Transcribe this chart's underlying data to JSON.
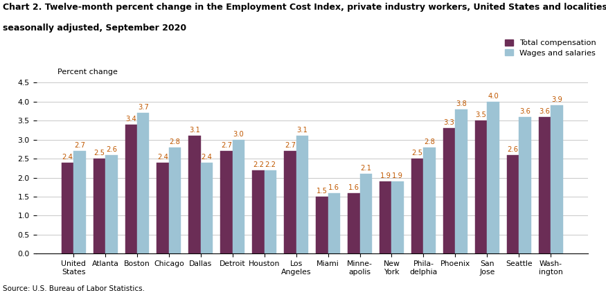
{
  "title_line1": "Chart 2. Twelve-month percent change in the Employment Cost Index, private industry workers, United States and localities, not",
  "title_line2": "seasonally adjusted, September 2020",
  "ylabel": "Percent change",
  "source": "Source: U.S. Bureau of Labor Statistics.",
  "categories": [
    "United\nStates",
    "Atlanta",
    "Boston",
    "Chicago",
    "Dallas",
    "Detroit",
    "Houston",
    "Los\nAngeles",
    "Miami",
    "Minne-\napolis",
    "New\nYork",
    "Phila-\ndelphia",
    "Phoenix",
    "San\nJose",
    "Seattle",
    "Wash-\nington"
  ],
  "total_compensation": [
    2.4,
    2.5,
    3.4,
    2.4,
    3.1,
    2.7,
    2.2,
    2.7,
    1.5,
    1.6,
    1.9,
    2.5,
    3.3,
    3.5,
    2.6,
    3.6
  ],
  "wages_and_salaries": [
    2.7,
    2.6,
    3.7,
    2.8,
    2.4,
    3.0,
    2.2,
    3.1,
    1.6,
    2.1,
    1.9,
    2.8,
    3.8,
    4.0,
    3.6,
    3.9
  ],
  "color_total": "#6B2D56",
  "color_wages": "#9DC3D4",
  "ylim": [
    0,
    4.5
  ],
  "yticks": [
    0.0,
    0.5,
    1.0,
    1.5,
    2.0,
    2.5,
    3.0,
    3.5,
    4.0,
    4.5
  ],
  "legend_total": "Total compensation",
  "legend_wages": "Wages and salaries",
  "bar_width": 0.38,
  "label_fontsize": 7.2,
  "tick_fontsize": 7.8,
  "title_fontsize": 9.0,
  "value_label_color": "#C05800"
}
